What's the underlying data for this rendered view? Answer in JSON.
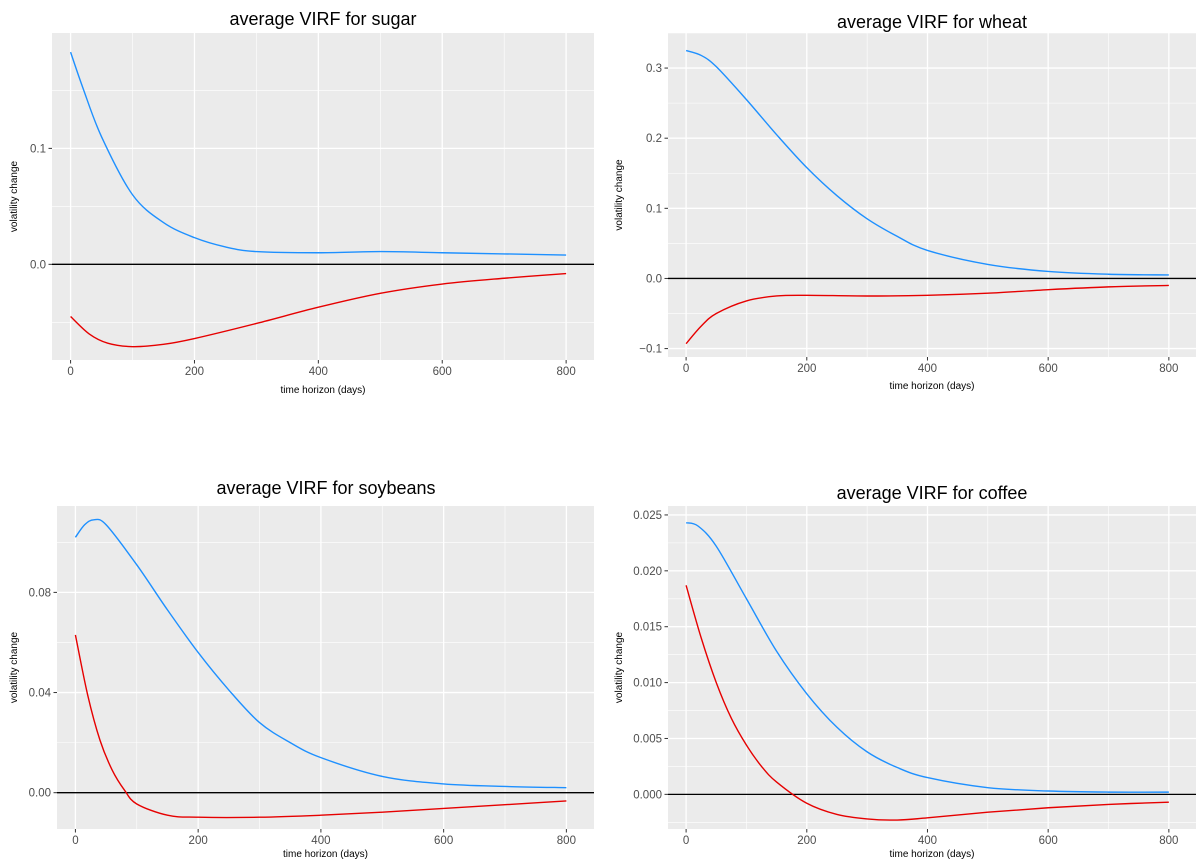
{
  "figure": {
    "colors": {
      "panel_bg": "#EBEBEB",
      "grid": "#FFFFFF",
      "tick_text": "#4D4D4D",
      "zero_line": "#000000"
    }
  },
  "chart_data": [
    {
      "type": "line",
      "title": "average VIRF for sugar",
      "xlabel": "time horizon (days)",
      "ylabel": "volatility change",
      "xlim": [
        -30,
        845
      ],
      "ylim": [
        -0.0825,
        0.1995
      ],
      "xticks": [
        0,
        200,
        400,
        600,
        800
      ],
      "xtick_labels": [
        "0",
        "200",
        "400",
        "600",
        "800"
      ],
      "yticks": [
        0.0,
        0.1
      ],
      "ytick_labels": [
        "0.0",
        "0.1"
      ],
      "hline": 0,
      "grid": true,
      "series": [
        {
          "color": "#1E90FF",
          "points": [
            [
              0,
              0.183
            ],
            [
              20,
              0.152
            ],
            [
              50,
              0.11
            ],
            [
              100,
              0.06
            ],
            [
              150,
              0.036
            ],
            [
              200,
              0.023
            ],
            [
              250,
              0.015
            ],
            [
              300,
              0.011
            ],
            [
              400,
              0.01
            ],
            [
              500,
              0.011
            ],
            [
              600,
              0.01
            ],
            [
              700,
              0.009
            ],
            [
              800,
              0.008
            ]
          ]
        },
        {
          "color": "#E60000",
          "points": [
            [
              0,
              -0.045
            ],
            [
              30,
              -0.06
            ],
            [
              60,
              -0.068
            ],
            [
              100,
              -0.071
            ],
            [
              150,
              -0.069
            ],
            [
              200,
              -0.064
            ],
            [
              300,
              -0.051
            ],
            [
              400,
              -0.037
            ],
            [
              500,
              -0.025
            ],
            [
              600,
              -0.017
            ],
            [
              700,
              -0.012
            ],
            [
              800,
              -0.008
            ]
          ]
        }
      ]
    },
    {
      "type": "line",
      "title": "average VIRF for wheat",
      "xlabel": "time horizon (days)",
      "ylabel": "volatility change",
      "xlim": [
        -30,
        845
      ],
      "ylim": [
        -0.112,
        0.35
      ],
      "xticks": [
        0,
        200,
        400,
        600,
        800
      ],
      "xtick_labels": [
        "0",
        "200",
        "400",
        "600",
        "800"
      ],
      "yticks": [
        -0.1,
        0.0,
        0.1,
        0.2,
        0.3
      ],
      "ytick_labels": [
        "−0.1",
        "0.0",
        "0.1",
        "0.2",
        "0.3"
      ],
      "hline": 0,
      "grid": true,
      "series": [
        {
          "color": "#1E90FF",
          "points": [
            [
              0,
              0.325
            ],
            [
              25,
              0.318
            ],
            [
              50,
              0.302
            ],
            [
              100,
              0.255
            ],
            [
              150,
              0.205
            ],
            [
              200,
              0.158
            ],
            [
              250,
              0.118
            ],
            [
              300,
              0.085
            ],
            [
              350,
              0.06
            ],
            [
              400,
              0.04
            ],
            [
              500,
              0.02
            ],
            [
              600,
              0.01
            ],
            [
              700,
              0.006
            ],
            [
              800,
              0.005
            ]
          ]
        },
        {
          "color": "#E60000",
          "points": [
            [
              0,
              -0.093
            ],
            [
              25,
              -0.068
            ],
            [
              50,
              -0.05
            ],
            [
              100,
              -0.032
            ],
            [
              150,
              -0.025
            ],
            [
              200,
              -0.024
            ],
            [
              300,
              -0.025
            ],
            [
              400,
              -0.024
            ],
            [
              500,
              -0.021
            ],
            [
              600,
              -0.016
            ],
            [
              700,
              -0.012
            ],
            [
              800,
              -0.01
            ]
          ]
        }
      ]
    },
    {
      "type": "line",
      "title": "average VIRF for soybeans",
      "xlabel": "time horizon (days)",
      "ylabel": "volatility change",
      "xlim": [
        -30,
        845
      ],
      "ylim": [
        -0.0145,
        0.1145
      ],
      "xticks": [
        0,
        200,
        400,
        600,
        800
      ],
      "xtick_labels": [
        "0",
        "200",
        "400",
        "600",
        "800"
      ],
      "yticks": [
        0.0,
        0.04,
        0.08
      ],
      "ytick_labels": [
        "0.00",
        "0.04",
        "0.08"
      ],
      "hline": 0,
      "grid": true,
      "series": [
        {
          "color": "#1E90FF",
          "points": [
            [
              0,
              0.102
            ],
            [
              15,
              0.107
            ],
            [
              30,
              0.109
            ],
            [
              50,
              0.107
            ],
            [
              100,
              0.091
            ],
            [
              150,
              0.073
            ],
            [
              200,
              0.056
            ],
            [
              250,
              0.041
            ],
            [
              300,
              0.028
            ],
            [
              350,
              0.02
            ],
            [
              400,
              0.014
            ],
            [
              500,
              0.0065
            ],
            [
              600,
              0.0035
            ],
            [
              700,
              0.0025
            ],
            [
              800,
              0.002
            ]
          ]
        },
        {
          "color": "#E60000",
          "points": [
            [
              0,
              0.063
            ],
            [
              20,
              0.039
            ],
            [
              40,
              0.021
            ],
            [
              60,
              0.009
            ],
            [
              80,
              0.001
            ],
            [
              100,
              -0.0045
            ],
            [
              150,
              -0.009
            ],
            [
              200,
              -0.0098
            ],
            [
              300,
              -0.0098
            ],
            [
              400,
              -0.009
            ],
            [
              500,
              -0.0078
            ],
            [
              600,
              -0.0063
            ],
            [
              700,
              -0.0048
            ],
            [
              800,
              -0.0033
            ]
          ]
        }
      ]
    },
    {
      "type": "line",
      "title": "average VIRF for coffee",
      "xlabel": "time horizon (days)",
      "ylabel": "volatility change",
      "xlim": [
        -30,
        845
      ],
      "ylim": [
        -0.0031,
        0.0258
      ],
      "xticks": [
        0,
        200,
        400,
        600,
        800
      ],
      "xtick_labels": [
        "0",
        "200",
        "400",
        "600",
        "800"
      ],
      "yticks": [
        0.0,
        0.005,
        0.01,
        0.015,
        0.02,
        0.025
      ],
      "ytick_labels": [
        "0.000",
        "0.005",
        "0.010",
        "0.015",
        "0.020",
        "0.025"
      ],
      "hline": 0,
      "grid": true,
      "series": [
        {
          "color": "#1E90FF",
          "points": [
            [
              0,
              0.0243
            ],
            [
              20,
              0.024
            ],
            [
              50,
              0.0222
            ],
            [
              100,
              0.0175
            ],
            [
              150,
              0.0128
            ],
            [
              200,
              0.009
            ],
            [
              250,
              0.006
            ],
            [
              300,
              0.0038
            ],
            [
              350,
              0.0024
            ],
            [
              400,
              0.0015
            ],
            [
              500,
              0.0006
            ],
            [
              600,
              0.0003
            ],
            [
              700,
              0.0002
            ],
            [
              800,
              0.0002
            ]
          ]
        },
        {
          "color": "#E60000",
          "points": [
            [
              0,
              0.0187
            ],
            [
              25,
              0.014
            ],
            [
              50,
              0.01
            ],
            [
              75,
              0.0068
            ],
            [
              100,
              0.0044
            ],
            [
              125,
              0.0025
            ],
            [
              150,
              0.0011
            ],
            [
              200,
              -0.0008
            ],
            [
              250,
              -0.0018
            ],
            [
              300,
              -0.0022
            ],
            [
              350,
              -0.0023
            ],
            [
              400,
              -0.0021
            ],
            [
              500,
              -0.0016
            ],
            [
              600,
              -0.0012
            ],
            [
              700,
              -0.0009
            ],
            [
              800,
              -0.0007
            ]
          ]
        }
      ]
    }
  ]
}
